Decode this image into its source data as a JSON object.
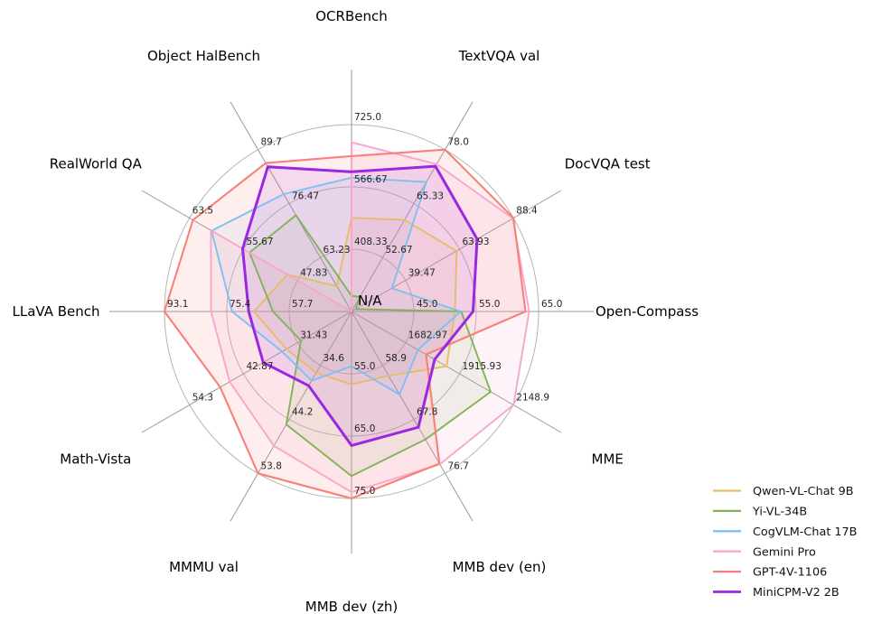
{
  "chart_data": {
    "type": "radar",
    "title": "",
    "center_label": "N/A",
    "grid": true,
    "rings": 3,
    "legend_position": "lower right",
    "axes": [
      {
        "label": "OCRBench",
        "min": 250,
        "max": 725,
        "ticks": [
          "408.33",
          "566.67",
          "725.0"
        ]
      },
      {
        "label": "TextVQA val",
        "min": 40,
        "max": 78,
        "ticks": [
          "52.67",
          "65.33",
          "78.0"
        ]
      },
      {
        "label": "DocVQA test",
        "min": 15,
        "max": 88.4,
        "ticks": [
          "39.47",
          "63.93",
          "88.4"
        ]
      },
      {
        "label": "Open-Compass",
        "min": 35,
        "max": 65,
        "ticks": [
          "45.0",
          "55.0",
          "65.0"
        ]
      },
      {
        "label": "MME",
        "min": 1450,
        "max": 2148.9,
        "ticks": [
          "1682.97",
          "1915.93",
          "2148.9"
        ]
      },
      {
        "label": "MMB dev (en)",
        "min": 50,
        "max": 76.7,
        "ticks": [
          "58.9",
          "67.8",
          "76.7"
        ]
      },
      {
        "label": "MMB dev (zh)",
        "min": 45,
        "max": 75,
        "ticks": [
          "55.0",
          "65.0",
          "75.0"
        ]
      },
      {
        "label": "MMMU val",
        "min": 25,
        "max": 53.8,
        "ticks": [
          "34.6",
          "44.2",
          "53.8"
        ]
      },
      {
        "label": "Math-Vista",
        "min": 20,
        "max": 54.3,
        "ticks": [
          "31.43",
          "42.87",
          "54.3"
        ]
      },
      {
        "label": "LLaVA Bench",
        "min": 40,
        "max": 93.1,
        "ticks": [
          "57.7",
          "75.4",
          "93.1"
        ]
      },
      {
        "label": "RealWorld QA",
        "min": 40,
        "max": 63.5,
        "ticks": [
          "47.83",
          "55.67",
          "63.5"
        ]
      },
      {
        "label": "Object HalBench",
        "min": 50,
        "max": 89.7,
        "ticks": [
          "63.23",
          "76.47",
          "89.7"
        ]
      }
    ],
    "series": [
      {
        "name": "Qwen-VL-Chat 9B",
        "color": "#e5bc6a",
        "values": [
          488,
          61.5,
          62.6,
          51.6,
          1860.0,
          60.6,
          56.7,
          35.9,
          33.8,
          67.7,
          49.3,
          56.2
        ]
      },
      {
        "name": "Yi-VL-34B",
        "color": "#80b456",
        "values": [
          290,
          43.4,
          16.9,
          52.6,
          2050.2,
          71.1,
          71.4,
          45.1,
          30.7,
          62.3,
          54.8,
          73.6
        ]
      },
      {
        "name": "CogVLM-Chat 17B",
        "color": "#7fc0f2",
        "values": [
          590,
          70.4,
          33.3,
          52.5,
          1736.6,
          63.7,
          53.8,
          37.3,
          34.7,
          73.9,
          60.3,
          78.8
        ]
      },
      {
        "name": "Gemini Pro",
        "color": "#f8a5cc",
        "values": [
          680,
          74.6,
          88.1,
          63.5,
          2148.9,
          75.2,
          74.0,
          48.9,
          45.8,
          79.9,
          60.4,
          null
        ]
      },
      {
        "name": "GPT-4V-1106",
        "color": "#f8807a",
        "values": [
          645,
          78.0,
          88.4,
          62.9,
          1771.5,
          75.1,
          75.0,
          53.8,
          47.8,
          93.1,
          63.0,
          86.4
        ]
      },
      {
        "name": "MiniCPM-V2 2B",
        "color": "#9c27e0",
        "values": [
          605,
          74.1,
          71.9,
          54.5,
          1808.6,
          69.1,
          66.5,
          38.2,
          38.7,
          69.2,
          55.8,
          85.5
        ]
      }
    ]
  }
}
